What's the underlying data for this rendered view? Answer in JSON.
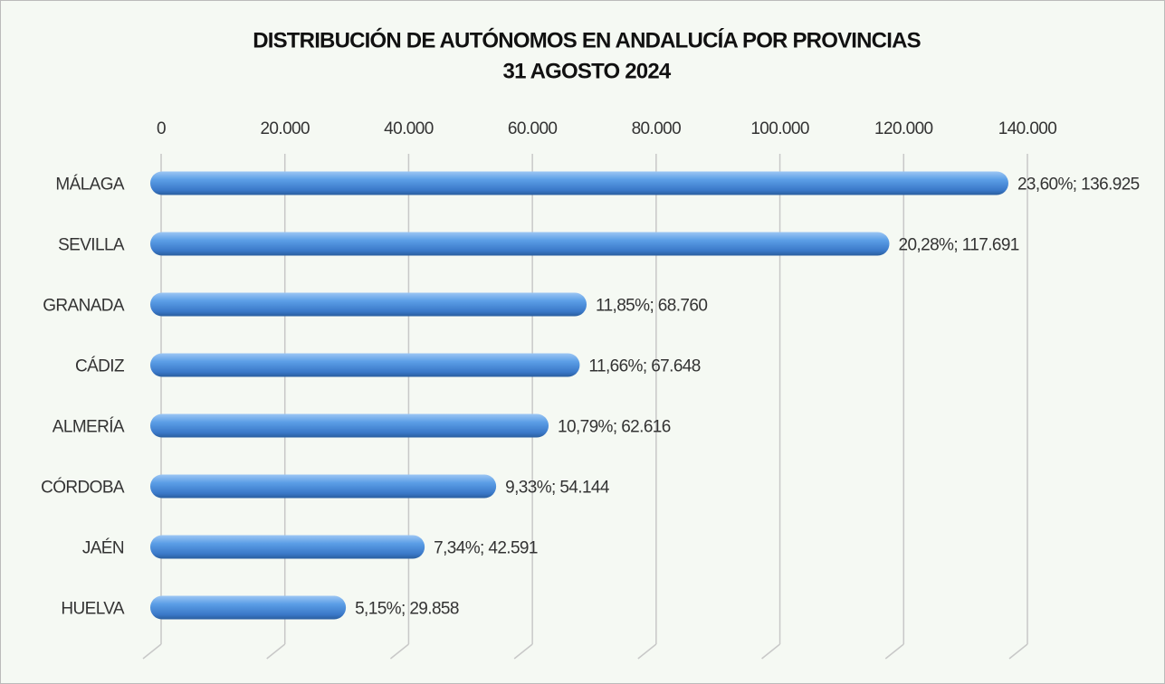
{
  "chart_data": {
    "type": "hbar",
    "title": "DISTRIBUCIÓN DE AUTÓNOMOS EN ANDALUCÍA POR PROVINCIAS",
    "subtitle": "31 AGOSTO 2024",
    "categories": [
      "MÁLAGA",
      "SEVILLA",
      "GRANADA",
      "CÁDIZ",
      "ALMERÍA",
      "CÓRDOBA",
      "JAÉN",
      "HUELVA"
    ],
    "values": [
      136925,
      117691,
      68760,
      67648,
      62616,
      54144,
      42591,
      29858
    ],
    "value_labels": [
      "23,60%; 136.925",
      "20,28%; 117.691",
      "11,85%; 68.760",
      "11,66%; 67.648",
      "10,79%; 62.616",
      "9,33%; 54.144",
      "7,34%; 42.591",
      "5,15%; 29.858"
    ],
    "color": "#4a8fdc",
    "xlim": [
      0,
      140000
    ],
    "xticks": [
      0,
      {
        "value": 20000,
        "label": "20.000"
      },
      {
        "value": 40000,
        "label": "40.000"
      },
      {
        "value": 60000,
        "label": "60.000"
      },
      {
        "value": 80000,
        "label": "80.000"
      },
      {
        "value": 100000,
        "label": "100.000"
      },
      {
        "value": 120000,
        "label": "120.000"
      },
      {
        "value": 140000,
        "label": "140.000"
      }
    ],
    "grid": true
  }
}
